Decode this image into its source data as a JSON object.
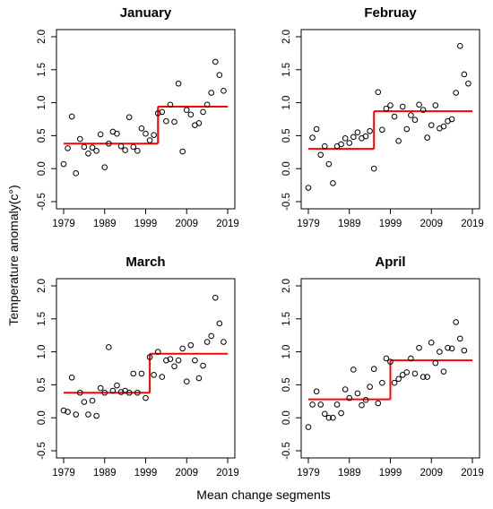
{
  "ylabel": "Temperature anomaly(c°)",
  "xlabel": "Mean change segments",
  "colors": {
    "points": "#000000",
    "segments": "#ff0000",
    "frame": "#000000"
  },
  "chart_data": [
    {
      "type": "scatter",
      "title": "January",
      "xlim": [
        1979,
        2019
      ],
      "ylim": [
        -0.5,
        2.0
      ],
      "xticks": [
        1979,
        1989,
        1999,
        2009,
        2019
      ],
      "yticks": [
        -0.5,
        0.0,
        0.5,
        1.0,
        1.5,
        2.0
      ],
      "x": [
        1979,
        1980,
        1981,
        1982,
        1983,
        1984,
        1985,
        1986,
        1987,
        1988,
        1989,
        1990,
        1991,
        1992,
        1993,
        1994,
        1995,
        1996,
        1997,
        1998,
        1999,
        2000,
        2001,
        2002,
        2003,
        2004,
        2005,
        2006,
        2007,
        2008,
        2009,
        2010,
        2011,
        2012,
        2013,
        2014,
        2015,
        2016,
        2017,
        2018,
        2019
      ],
      "y": [
        0.07,
        0.31,
        0.79,
        -0.07,
        0.45,
        0.33,
        0.23,
        0.32,
        0.27,
        0.52,
        0.02,
        0.38,
        0.56,
        0.53,
        0.34,
        0.28,
        0.78,
        0.33,
        0.27,
        0.61,
        0.53,
        0.43,
        0.51,
        0.84,
        0.86,
        0.72,
        0.97,
        0.71,
        1.29,
        0.26,
        0.89,
        0.82,
        0.66,
        0.69,
        0.86,
        0.97,
        1.15,
        1.62,
        1.42,
        1.18,
        null
      ],
      "segments": [
        {
          "x": [
            1979,
            2002
          ],
          "y": 0.38
        },
        {
          "x": [
            2002,
            2019
          ],
          "y": 0.94
        }
      ]
    },
    {
      "type": "scatter",
      "title": "Februay",
      "xlim": [
        1979,
        2019
      ],
      "ylim": [
        -0.5,
        2.0
      ],
      "xticks": [
        1979,
        1989,
        1999,
        2009,
        2019
      ],
      "yticks": [
        -0.5,
        0.0,
        0.5,
        1.0,
        1.5,
        2.0
      ],
      "x": [
        1979,
        1980,
        1981,
        1982,
        1983,
        1984,
        1985,
        1986,
        1987,
        1988,
        1989,
        1990,
        1991,
        1992,
        1993,
        1994,
        1995,
        1996,
        1997,
        1998,
        1999,
        2000,
        2001,
        2002,
        2003,
        2004,
        2005,
        2006,
        2007,
        2008,
        2009,
        2010,
        2011,
        2012,
        2013,
        2014,
        2015,
        2016,
        2017,
        2018,
        2019
      ],
      "y": [
        -0.29,
        0.47,
        0.6,
        0.21,
        0.34,
        0.07,
        -0.22,
        0.34,
        0.37,
        0.46,
        0.39,
        0.48,
        0.55,
        0.46,
        0.49,
        0.57,
        0.0,
        1.16,
        0.59,
        0.91,
        0.96,
        0.79,
        0.42,
        0.94,
        0.6,
        0.81,
        0.74,
        0.97,
        0.89,
        0.47,
        0.66,
        0.96,
        0.61,
        0.64,
        0.72,
        0.75,
        1.15,
        1.86,
        1.43,
        1.29,
        null
      ],
      "segments": [
        {
          "x": [
            1979,
            1995
          ],
          "y": 0.3
        },
        {
          "x": [
            1995,
            2019
          ],
          "y": 0.87
        }
      ]
    },
    {
      "type": "scatter",
      "title": "March",
      "xlim": [
        1979,
        2019
      ],
      "ylim": [
        -0.5,
        2.0
      ],
      "xticks": [
        1979,
        1989,
        1999,
        2009,
        2019
      ],
      "yticks": [
        -0.5,
        0.0,
        0.5,
        1.0,
        1.5,
        2.0
      ],
      "x": [
        1979,
        1980,
        1981,
        1982,
        1983,
        1984,
        1985,
        1986,
        1987,
        1988,
        1989,
        1990,
        1991,
        1992,
        1993,
        1994,
        1995,
        1996,
        1997,
        1998,
        1999,
        2000,
        2001,
        2002,
        2003,
        2004,
        2005,
        2006,
        2007,
        2008,
        2009,
        2010,
        2011,
        2012,
        2013,
        2014,
        2015,
        2016,
        2017,
        2018,
        2019
      ],
      "y": [
        0.11,
        0.09,
        0.61,
        0.05,
        0.38,
        0.24,
        0.05,
        0.26,
        0.03,
        0.45,
        0.38,
        1.07,
        0.41,
        0.49,
        0.39,
        0.41,
        0.38,
        0.67,
        0.38,
        0.67,
        0.3,
        0.92,
        0.65,
        1.0,
        0.62,
        0.87,
        0.89,
        0.78,
        0.87,
        1.05,
        0.55,
        1.1,
        0.87,
        0.6,
        0.79,
        1.15,
        1.24,
        1.82,
        1.43,
        1.15,
        null
      ],
      "segments": [
        {
          "x": [
            1979,
            2000
          ],
          "y": 0.38
        },
        {
          "x": [
            2000,
            2019
          ],
          "y": 0.97
        }
      ]
    },
    {
      "type": "scatter",
      "title": "April",
      "xlim": [
        1979,
        2019
      ],
      "ylim": [
        -0.5,
        2.0
      ],
      "xticks": [
        1979,
        1989,
        1999,
        2009,
        2019
      ],
      "yticks": [
        -0.5,
        0.0,
        0.5,
        1.0,
        1.5,
        2.0
      ],
      "x": [
        1979,
        1980,
        1981,
        1982,
        1983,
        1984,
        1985,
        1986,
        1987,
        1988,
        1989,
        1990,
        1991,
        1992,
        1993,
        1994,
        1995,
        1996,
        1997,
        1998,
        1999,
        2000,
        2001,
        2002,
        2003,
        2004,
        2005,
        2006,
        2007,
        2008,
        2009,
        2010,
        2011,
        2012,
        2013,
        2014,
        2015,
        2016,
        2017,
        2018,
        2019
      ],
      "y": [
        -0.14,
        0.2,
        0.4,
        0.2,
        0.06,
        0.0,
        0.0,
        0.2,
        0.07,
        0.43,
        0.3,
        0.73,
        0.37,
        0.19,
        0.27,
        0.47,
        0.74,
        0.22,
        0.53,
        0.9,
        0.85,
        0.53,
        0.59,
        0.65,
        0.69,
        0.9,
        0.67,
        1.06,
        0.62,
        0.62,
        1.14,
        0.83,
        1.0,
        0.7,
        1.06,
        1.05,
        1.45,
        1.2,
        1.02,
        null,
        null
      ],
      "segments": [
        {
          "x": [
            1979,
            1999
          ],
          "y": 0.28
        },
        {
          "x": [
            1999,
            2019
          ],
          "y": 0.87
        }
      ]
    }
  ]
}
